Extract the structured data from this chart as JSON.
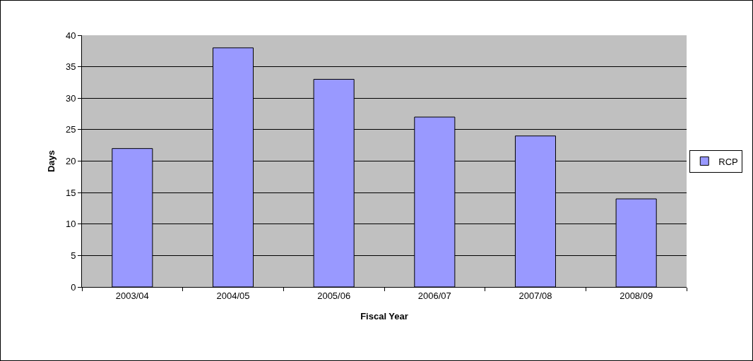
{
  "chart_data": {
    "type": "bar",
    "xlabel": "Fiscal Year",
    "ylabel": "Days",
    "categories": [
      "2003/04",
      "2004/05",
      "2005/06",
      "2006/07",
      "2007/08",
      "2008/09"
    ],
    "series": [
      {
        "name": "RCP",
        "color": "#9999ff",
        "values": [
          22,
          38,
          33,
          27,
          24,
          14
        ]
      }
    ],
    "ylim": [
      0,
      40
    ],
    "yticks": [
      0,
      5,
      10,
      15,
      20,
      25,
      30,
      35,
      40
    ],
    "grid": "y",
    "legend": "right"
  }
}
